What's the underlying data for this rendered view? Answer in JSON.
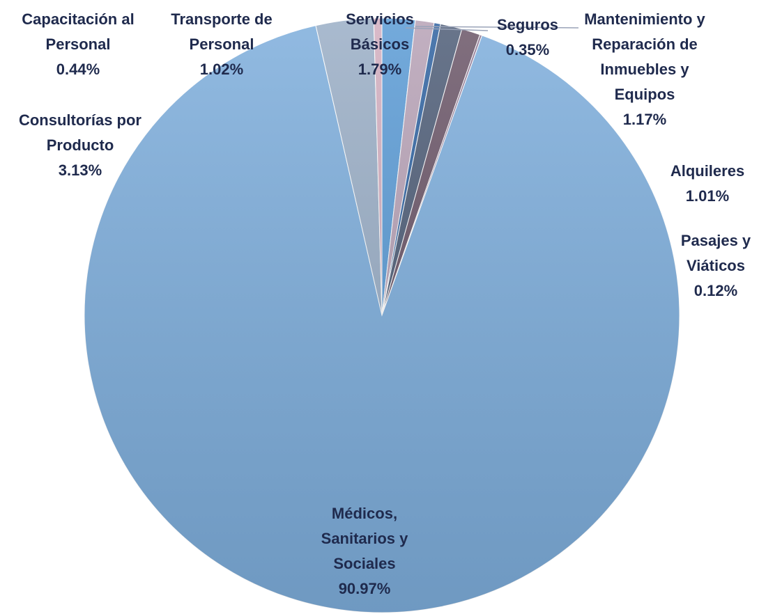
{
  "chart_data": {
    "type": "pie",
    "categories": [
      "Servicios Básicos",
      "Transporte de Personal",
      "Seguros",
      "Mantenimiento y Reparación de Inmuebles y Equipos",
      "Alquileres",
      "Pasajes y Viáticos",
      "Médicos, Sanitarios y Sociales",
      "Consultorías por Producto",
      "Capacitación al Personal"
    ],
    "values": [
      1.79,
      1.02,
      0.35,
      1.17,
      1.01,
      0.12,
      90.97,
      3.13,
      0.44
    ],
    "value_labels": [
      "1.79%",
      "1.02%",
      "0.35%",
      "1.17%",
      "1.01%",
      "0.12%",
      "90.97%",
      "3.13%",
      "0.44%"
    ],
    "colors": [
      "#5b9bd5",
      "#b7a2b6",
      "#2f62a0",
      "#4e5d77",
      "#6b5668",
      "#8d7490",
      "#7eaedc",
      "#9aaec6",
      "#d2aebf"
    ]
  }
}
